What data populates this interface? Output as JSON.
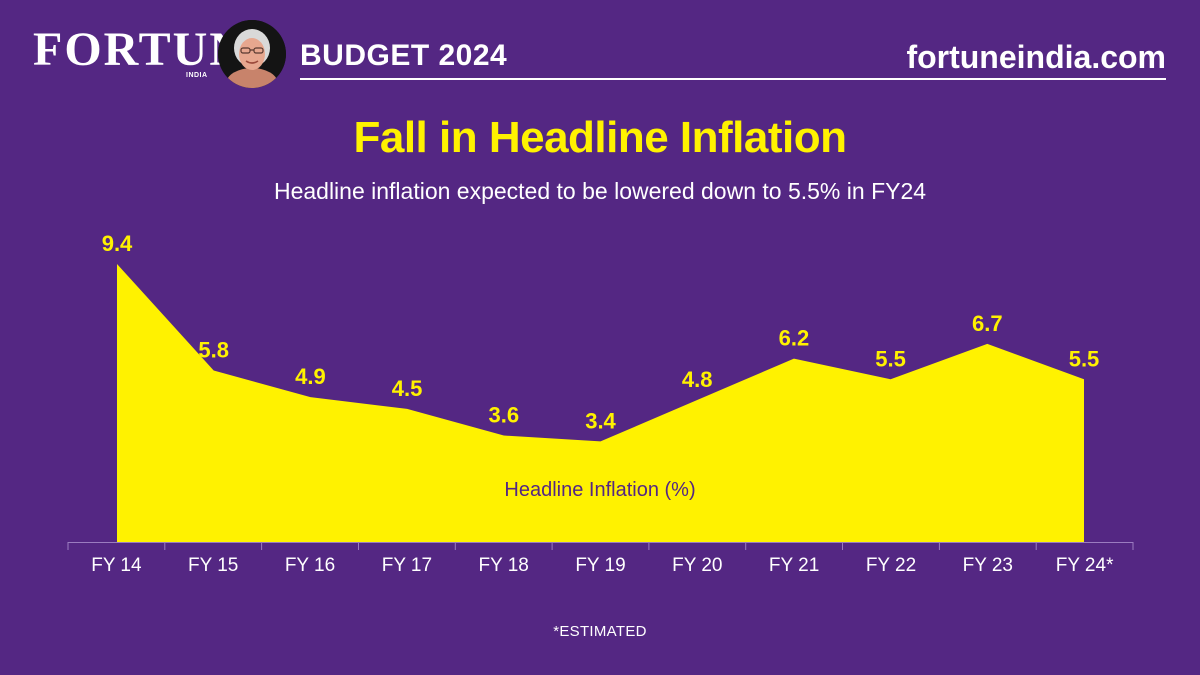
{
  "header": {
    "brand": "FORTUNE",
    "brand_sub": "INDIA",
    "section": "BUDGET 2024",
    "site": "fortuneindia.com"
  },
  "colors": {
    "background": "#542783",
    "accent": "#fff200",
    "text": "#ffffff",
    "area_label": "#542783"
  },
  "chart_data": {
    "type": "area",
    "title": "Fall in Headline Inflation",
    "subtitle": "Headline inflation expected to be lowered down to 5.5% in FY24",
    "categories": [
      "FY 14",
      "FY 15",
      "FY 16",
      "FY 17",
      "FY 18",
      "FY 19",
      "FY 20",
      "FY 21",
      "FY 22",
      "FY 23",
      "FY 24*"
    ],
    "series": [
      {
        "name": "Headline Inflation (%)",
        "values": [
          9.4,
          5.8,
          4.9,
          4.5,
          3.6,
          3.4,
          4.8,
          6.2,
          5.5,
          6.7,
          5.5
        ]
      }
    ],
    "data_labels": [
      "9.4",
      "5.8",
      "4.9",
      "4.5",
      "3.6",
      "3.4",
      "4.8",
      "6.2",
      "5.5",
      "6.7",
      "5.5"
    ],
    "ylim": [
      0,
      10
    ],
    "grid": false,
    "legend": "inside-area"
  },
  "footnote": "*ESTIMATED"
}
